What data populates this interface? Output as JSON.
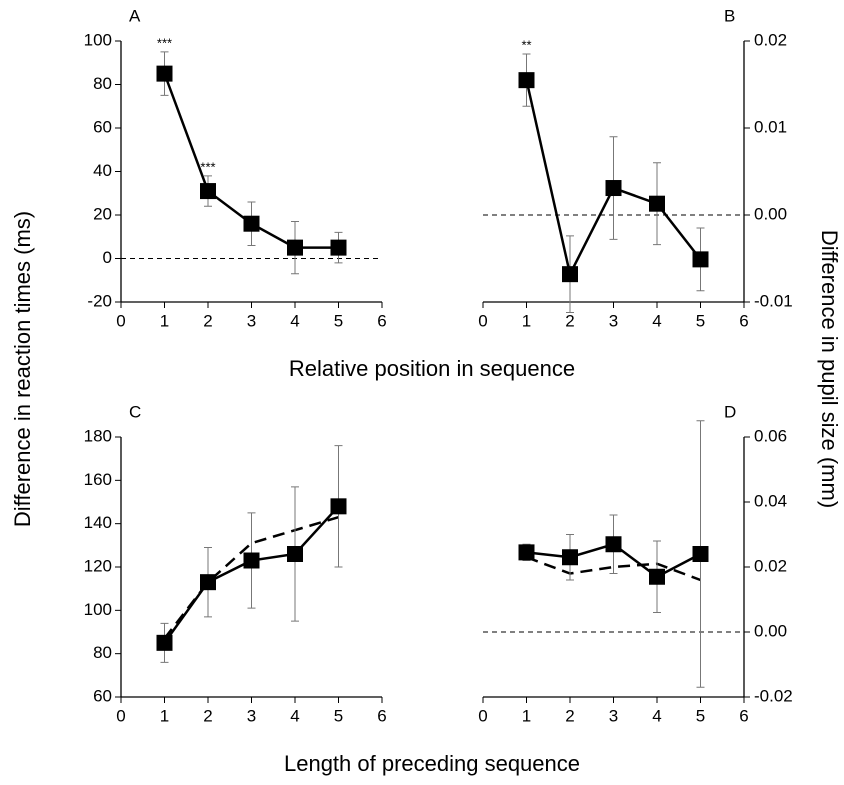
{
  "chart_data": [
    {
      "type": "line",
      "panel": "A",
      "xlabel": "Relative position in sequence",
      "ylabel": "Difference in reaction times (ms)",
      "yaxis_side": "left",
      "x": [
        1,
        2,
        3,
        4,
        5
      ],
      "xlim": [
        0,
        6
      ],
      "xticks": [
        0,
        1,
        2,
        3,
        4,
        5,
        6
      ],
      "ylim": [
        -20,
        100
      ],
      "yticks": [
        -20,
        0,
        20,
        40,
        60,
        80,
        100
      ],
      "reference_line": 0,
      "series": [
        {
          "color": "#000000",
          "dashed": false,
          "markers": true,
          "values": [
            85,
            31,
            16,
            5,
            5
          ],
          "errors": [
            10,
            7,
            10,
            12,
            7
          ],
          "annotations": [
            "***",
            "***",
            null,
            null,
            null
          ]
        }
      ]
    },
    {
      "type": "line",
      "panel": "B",
      "ylabel": "Difference in pupil size (mm)",
      "yaxis_side": "right",
      "x": [
        1,
        2,
        3,
        4,
        5
      ],
      "xlim": [
        0,
        6
      ],
      "xticks": [
        0,
        1,
        2,
        3,
        4,
        5,
        6
      ],
      "ylim": [
        -0.01,
        0.02
      ],
      "yticks": [
        -0.01,
        {
          "value": 0,
          "label": "0.00"
        },
        0.01,
        0.02
      ],
      "reference_line": 0,
      "series": [
        {
          "color": "#000000",
          "dashed": false,
          "markers": true,
          "values": [
            0.0155,
            -0.0068,
            0.0031,
            0.0013,
            -0.0051
          ],
          "errors": [
            0.003,
            0.0044,
            0.0059,
            0.0047,
            0.0036
          ],
          "annotations": [
            "**",
            null,
            null,
            null,
            null
          ]
        }
      ]
    },
    {
      "type": "line",
      "panel": "C",
      "xlabel": "Length of preceding sequence",
      "yaxis_side": "left",
      "x": [
        1,
        2,
        3,
        4,
        5
      ],
      "xlim": [
        0,
        6
      ],
      "xticks": [
        0,
        1,
        2,
        3,
        4,
        5,
        6
      ],
      "ylim": [
        60,
        180
      ],
      "yticks": [
        60,
        80,
        100,
        120,
        140,
        160,
        180
      ],
      "series": [
        {
          "color": "#000000",
          "dashed": true,
          "markers": false,
          "values": [
            87,
            113,
            131,
            137,
            143
          ]
        },
        {
          "color": "#000000",
          "dashed": false,
          "markers": true,
          "values": [
            85,
            113,
            123,
            126,
            148
          ],
          "errors": [
            9,
            16,
            22,
            31,
            28
          ]
        }
      ]
    },
    {
      "type": "line",
      "panel": "D",
      "yaxis_side": "right",
      "x": [
        1,
        2,
        3,
        4,
        5
      ],
      "xlim": [
        0,
        6
      ],
      "xticks": [
        0,
        1,
        2,
        3,
        4,
        5,
        6
      ],
      "ylim": [
        -0.02,
        0.06
      ],
      "yticks": [
        -0.02,
        {
          "value": 0,
          "label": "0.00"
        },
        0.02,
        0.04,
        0.06
      ],
      "reference_line": 0,
      "series": [
        {
          "color": "#000000",
          "dashed": true,
          "markers": false,
          "values": [
            0.023,
            0.018,
            0.02,
            0.021,
            0.016
          ]
        },
        {
          "color": "#000000",
          "dashed": false,
          "markers": true,
          "values": [
            0.0245,
            0.023,
            0.027,
            0.017,
            0.024
          ],
          "errors": [
            0.0025,
            0.007,
            0.009,
            0.011,
            0.041
          ]
        }
      ]
    }
  ]
}
